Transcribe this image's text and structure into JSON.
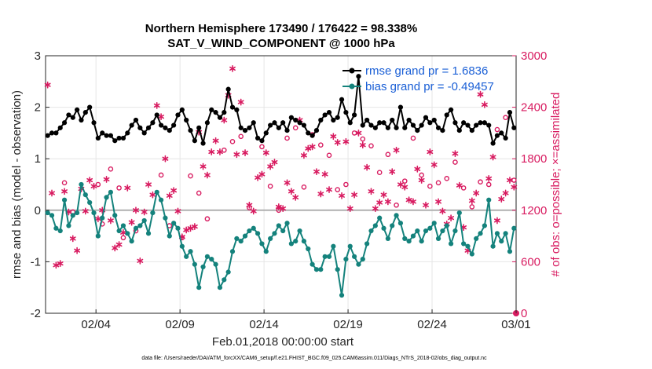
{
  "chart_data": {
    "type": "line",
    "title": "Northern Hemisphere 173490 / 176422 = 98.338%",
    "subtitle": "SAT_V_WIND_COMPONENT @ 1000 hPa",
    "xlabel": "Feb.01,2018 00:00:00 start",
    "ylabel": "rmse and bias (model - observation)",
    "ylabel_right": "# of obs: o=possible; ×=assimilated",
    "x_tick_labels": [
      "02/04",
      "02/09",
      "02/14",
      "02/19",
      "02/24",
      "03/01"
    ],
    "x_tick_days": [
      3,
      8,
      13,
      18,
      23,
      28
    ],
    "xlim": [
      0,
      28
    ],
    "y_ticks": [
      "-2",
      "-1",
      "0",
      "1",
      "2",
      "3"
    ],
    "ylim": [
      -2,
      3
    ],
    "y_right_ticks": [
      "0",
      "600",
      "1200",
      "1800",
      "2400",
      "3000"
    ],
    "ylim_right": [
      0,
      3000
    ],
    "grid": true,
    "legend_position": "top-right",
    "footnote": "data file: /Users/raeder/DAI/ATM_forcXX/CAM6_setup/f.e21.FHIST_BGC.f09_025.CAM6assim.011/Diags_NTrS_2018-02/obs_diag_output.nc",
    "series": [
      {
        "name": "rmse grand pr = 1.6836",
        "color": "#000000",
        "marker": "filled-circle",
        "x": [
          0.125,
          0.375,
          0.625,
          0.875,
          1.125,
          1.375,
          1.625,
          1.875,
          2.125,
          2.375,
          2.625,
          2.875,
          3.125,
          3.375,
          3.625,
          3.875,
          4.125,
          4.375,
          4.625,
          4.875,
          5.125,
          5.375,
          5.625,
          5.875,
          6.125,
          6.375,
          6.625,
          6.875,
          7.125,
          7.375,
          7.625,
          7.875,
          8.125,
          8.375,
          8.625,
          8.875,
          9.125,
          9.375,
          9.625,
          9.875,
          10.125,
          10.375,
          10.625,
          10.875,
          11.125,
          11.375,
          11.625,
          11.875,
          12.125,
          12.375,
          12.625,
          12.875,
          13.125,
          13.375,
          13.625,
          13.875,
          14.125,
          14.375,
          14.625,
          14.875,
          15.125,
          15.375,
          15.625,
          15.875,
          16.125,
          16.375,
          16.625,
          16.875,
          17.125,
          17.375,
          17.625,
          17.875,
          18.125,
          18.375,
          18.625,
          18.875,
          19.125,
          19.375,
          19.625,
          19.875,
          20.125,
          20.375,
          20.625,
          20.875,
          21.125,
          21.375,
          21.625,
          21.875,
          22.125,
          22.375,
          22.625,
          22.875,
          23.125,
          23.375,
          23.625,
          23.875,
          24.125,
          24.375,
          24.625,
          24.875,
          25.125,
          25.375,
          25.625,
          25.875,
          26.125,
          26.375,
          26.625,
          26.875,
          27.125,
          27.375,
          27.625,
          27.875
        ],
        "values": [
          1.45,
          1.5,
          1.5,
          1.6,
          1.7,
          1.85,
          1.8,
          1.95,
          1.75,
          1.9,
          2.0,
          1.7,
          1.4,
          1.5,
          1.45,
          1.45,
          1.35,
          1.4,
          1.4,
          1.5,
          1.65,
          1.75,
          1.6,
          1.5,
          1.6,
          1.7,
          1.85,
          1.65,
          1.6,
          1.55,
          1.65,
          1.85,
          1.95,
          1.75,
          1.55,
          1.35,
          1.6,
          1.3,
          1.7,
          1.95,
          1.9,
          1.8,
          1.9,
          2.35,
          2.0,
          1.95,
          1.6,
          1.55,
          1.6,
          1.7,
          1.4,
          1.35,
          1.5,
          1.65,
          1.7,
          1.6,
          1.7,
          1.55,
          1.8,
          1.75,
          1.7,
          1.65,
          1.5,
          1.45,
          1.55,
          1.75,
          1.85,
          1.9,
          1.75,
          1.8,
          2.15,
          1.9,
          1.7,
          1.85,
          2.6,
          1.65,
          1.75,
          1.65,
          1.6,
          1.7,
          1.7,
          1.6,
          1.75,
          1.6,
          2.0,
          1.6,
          1.75,
          1.65,
          1.55,
          1.65,
          1.8,
          1.7,
          1.75,
          1.6,
          1.55,
          1.85,
          1.95,
          1.7,
          1.55,
          1.7,
          1.65,
          1.55,
          1.65,
          1.7,
          1.7,
          1.65,
          1.3,
          1.45,
          1.5,
          1.4,
          1.9,
          1.6
        ]
      },
      {
        "name": "bias grand pr = -0.49457",
        "color": "#14827c",
        "marker": "filled-circle",
        "x": [
          0.125,
          0.375,
          0.625,
          0.875,
          1.125,
          1.375,
          1.625,
          1.875,
          2.125,
          2.375,
          2.625,
          2.875,
          3.125,
          3.375,
          3.625,
          3.875,
          4.125,
          4.375,
          4.625,
          4.875,
          5.125,
          5.375,
          5.625,
          5.875,
          6.125,
          6.375,
          6.625,
          6.875,
          7.125,
          7.375,
          7.625,
          7.875,
          8.125,
          8.375,
          8.625,
          8.875,
          9.125,
          9.375,
          9.625,
          9.875,
          10.125,
          10.375,
          10.625,
          10.875,
          11.125,
          11.375,
          11.625,
          11.875,
          12.125,
          12.375,
          12.625,
          12.875,
          13.125,
          13.375,
          13.625,
          13.875,
          14.125,
          14.375,
          14.625,
          14.875,
          15.125,
          15.375,
          15.625,
          15.875,
          16.125,
          16.375,
          16.625,
          16.875,
          17.125,
          17.375,
          17.625,
          17.875,
          18.125,
          18.375,
          18.625,
          18.875,
          19.125,
          19.375,
          19.625,
          19.875,
          20.125,
          20.375,
          20.625,
          20.875,
          21.125,
          21.375,
          21.625,
          21.875,
          22.125,
          22.375,
          22.625,
          22.875,
          23.125,
          23.375,
          23.625,
          23.875,
          24.125,
          24.375,
          24.625,
          24.875,
          25.125,
          25.375,
          25.625,
          25.875,
          26.125,
          26.375,
          26.625,
          26.875,
          27.125,
          27.375,
          27.625,
          27.875
        ],
        "values": [
          -0.05,
          -0.1,
          -0.35,
          -0.4,
          0.2,
          -0.3,
          -0.1,
          -0.05,
          0.5,
          0.3,
          0.15,
          -0.05,
          -0.5,
          -0.15,
          0.25,
          0.35,
          -0.1,
          -0.4,
          -0.3,
          -0.45,
          -0.6,
          -0.35,
          -0.3,
          -0.2,
          -0.45,
          -0.05,
          0.35,
          0.2,
          -0.15,
          -0.5,
          -0.25,
          -0.35,
          -0.7,
          -0.9,
          -0.8,
          -1.05,
          -1.5,
          -1.1,
          -0.9,
          -0.95,
          -1.05,
          -1.5,
          -1.35,
          -1.2,
          -0.8,
          -0.55,
          -0.6,
          -0.5,
          -0.4,
          -0.35,
          -0.45,
          -0.65,
          -0.8,
          -0.55,
          -0.45,
          -0.3,
          -0.4,
          -0.25,
          -0.65,
          -0.6,
          -0.4,
          -0.6,
          -0.75,
          -1.05,
          -1.15,
          -1.15,
          -0.9,
          -0.9,
          -0.7,
          -1.15,
          -1.65,
          -0.95,
          -0.7,
          -0.9,
          -1.05,
          -0.95,
          -0.65,
          -0.4,
          -0.3,
          -0.15,
          -0.35,
          -0.55,
          -0.3,
          -0.1,
          -0.25,
          -0.55,
          -0.6,
          -0.5,
          -0.4,
          -0.6,
          -0.4,
          -0.35,
          -0.25,
          -0.55,
          -0.4,
          -0.3,
          -0.65,
          -0.4,
          -0.05,
          -0.65,
          -0.7,
          -0.85,
          -0.55,
          -0.45,
          -0.3,
          0.2,
          -0.7,
          -0.45,
          -0.6,
          -0.45,
          -0.8,
          -0.35
        ]
      },
      {
        "name": "obs possible",
        "color": "#d81b60",
        "marker": "open-circle",
        "axis": "right",
        "x": [
          1.125,
          1.625,
          3.125,
          3.375,
          3.875,
          4.375,
          4.625,
          5.375,
          6.875,
          7.375,
          8.125,
          8.625,
          9.125,
          9.625,
          10.625,
          11.125,
          11.625,
          12.125,
          12.875,
          13.375,
          13.875,
          14.375,
          14.875,
          15.375,
          15.875,
          16.375,
          16.875,
          17.375,
          17.875,
          18.375,
          18.875,
          19.375,
          19.875,
          20.375,
          20.875,
          21.375,
          21.875,
          22.375,
          22.875,
          23.375,
          23.875,
          24.375,
          24.875,
          25.375,
          25.875,
          26.375,
          26.875,
          27.375,
          27.875
        ],
        "values": [
          1520,
          1180,
          1500,
          1040,
          1680,
          1460,
          880,
          960,
          1610,
          1020,
          880,
          1600,
          1400,
          1100,
          1900,
          2000,
          2060,
          1230,
          1940,
          1480,
          1200,
          2040,
          2160,
          1470,
          2080,
          1960,
          1840,
          1440,
          1500,
          2100,
          2030,
          1950,
          1640,
          1850,
          1260,
          1540,
          2040,
          1610,
          1480,
          1520,
          1570,
          1760,
          1460,
          1240,
          1530,
          1500,
          2140,
          2280,
          1550
        ]
      },
      {
        "name": "obs assimilated",
        "color": "#d81b60",
        "marker": "asterisk",
        "axis": "right",
        "x": [
          0.125,
          0.375,
          0.625,
          0.875,
          1.125,
          1.375,
          1.625,
          1.875,
          2.125,
          2.375,
          2.625,
          2.875,
          3.125,
          3.375,
          3.625,
          3.875,
          4.125,
          4.375,
          4.625,
          4.875,
          5.125,
          5.375,
          5.625,
          5.875,
          6.125,
          6.375,
          6.625,
          6.875,
          7.125,
          7.375,
          7.625,
          7.875,
          8.125,
          8.375,
          8.625,
          8.875,
          9.125,
          9.375,
          9.625,
          9.875,
          10.125,
          10.375,
          10.625,
          10.875,
          11.125,
          11.375,
          11.625,
          11.875,
          12.125,
          12.375,
          12.625,
          12.875,
          13.125,
          13.375,
          13.625,
          13.875,
          14.125,
          14.375,
          14.625,
          14.875,
          15.125,
          15.375,
          15.625,
          15.875,
          16.125,
          16.375,
          16.625,
          16.875,
          17.125,
          17.375,
          17.625,
          17.875,
          18.125,
          18.375,
          18.625,
          18.875,
          19.125,
          19.375,
          19.625,
          19.875,
          20.125,
          20.375,
          20.625,
          20.875,
          21.125,
          21.375,
          21.625,
          21.875,
          22.125,
          22.375,
          22.625,
          22.875,
          23.125,
          23.375,
          23.625,
          23.875,
          24.125,
          24.375,
          24.625,
          24.875,
          25.125,
          25.375,
          25.625,
          25.875,
          26.125,
          26.375,
          26.625,
          26.875,
          27.125,
          27.375,
          27.625,
          27.875
        ],
        "values": [
          2660,
          1400,
          560,
          580,
          1420,
          1180,
          870,
          730,
          1450,
          1190,
          1550,
          1480,
          1100,
          1200,
          1560,
          1080,
          760,
          800,
          940,
          1460,
          1060,
          1200,
          610,
          1180,
          1500,
          1380,
          2420,
          2290,
          1800,
          1370,
          1430,
          1190,
          890,
          970,
          990,
          1010,
          2110,
          1710,
          1610,
          1880,
          2010,
          1880,
          2250,
          2540,
          2850,
          1850,
          2460,
          1870,
          1260,
          1190,
          1580,
          1620,
          1870,
          1710,
          1760,
          1240,
          1220,
          1520,
          1420,
          1350,
          2250,
          1840,
          1920,
          1940,
          1650,
          1390,
          1620,
          1440,
          2060,
          1990,
          1370,
          2000,
          1220,
          1380,
          2100,
          1960,
          1700,
          1420,
          1220,
          1290,
          1380,
          1300,
          1650,
          1900,
          1500,
          1470,
          1320,
          1300,
          1680,
          1550,
          1260,
          1880,
          1730,
          1300,
          1190,
          1040,
          1110,
          1860,
          1490,
          1000,
          730,
          1310,
          1400,
          2550,
          2430,
          1570,
          1820,
          1080,
          1330,
          1400,
          1550,
          1470
        ]
      }
    ]
  }
}
